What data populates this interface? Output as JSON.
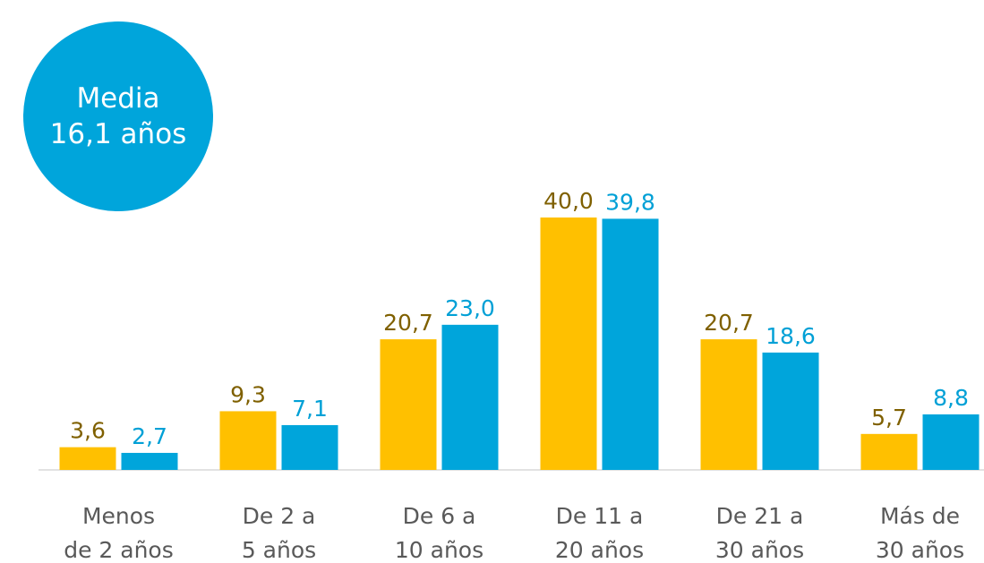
{
  "chart_data": {
    "type": "bar",
    "annotation": "Media\n16,1 años",
    "annotation_color": "#00A5DB",
    "categories": [
      "Menos\nde 2 años",
      "De 2 a\n5 años",
      "De 6 a\n10 años",
      "De 11 a\n20 años",
      "De 21 a\n30 años",
      "Más de\n30 años"
    ],
    "series": [
      {
        "color": "#FFC000",
        "label_color": "#7F6000",
        "values": [
          3.6,
          9.3,
          20.7,
          40.0,
          20.7,
          5.7
        ],
        "value_labels": [
          "3,6",
          "9,3",
          "20,7",
          "40,0",
          "20,7",
          "5,7"
        ]
      },
      {
        "color": "#00A5DB",
        "label_color": "#00A0D6",
        "values": [
          2.7,
          7.1,
          23.0,
          39.8,
          18.6,
          8.8
        ],
        "value_labels": [
          "2,7",
          "7,1",
          "23,0",
          "39,8",
          "18,6",
          "8,8"
        ]
      }
    ],
    "ylim": [
      0,
      45
    ]
  }
}
